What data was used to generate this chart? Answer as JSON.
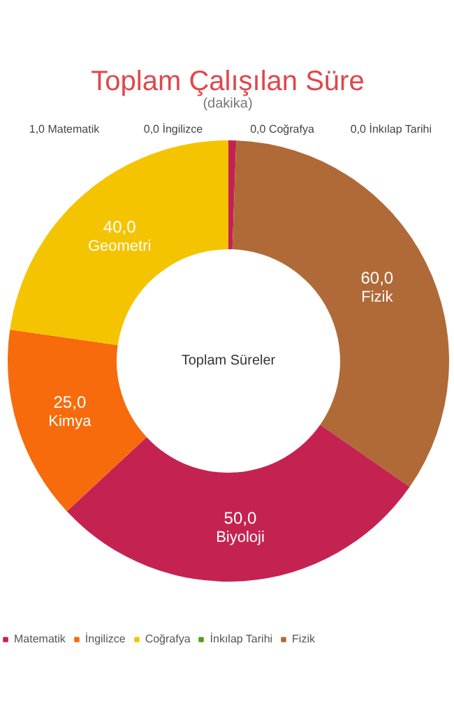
{
  "chart_data": {
    "type": "donut",
    "title": "Toplam Çalışılan Süre",
    "subtitle": "(dakika)",
    "annotations": [
      "Toplam Süreler"
    ],
    "categories": [
      "Matematik",
      "İngilizce",
      "Coğrafya",
      "İnkılap Tarihi",
      "Fizik",
      "Biyoloji",
      "Kimya",
      "Geometri"
    ],
    "values": [
      1,
      0,
      0,
      0,
      60,
      50,
      25,
      40
    ],
    "value_labels": [
      "1,0",
      "0,0",
      "0,0",
      "0,0",
      "60,0",
      "50,0",
      "25,0",
      "40,0"
    ],
    "colors": [
      "#c42352",
      "#f76b0c",
      "#f5c400",
      "#5d9b1c",
      "#b06a37",
      "#c42352",
      "#f76b0c",
      "#f5c400"
    ],
    "legend": "bottom left"
  }
}
